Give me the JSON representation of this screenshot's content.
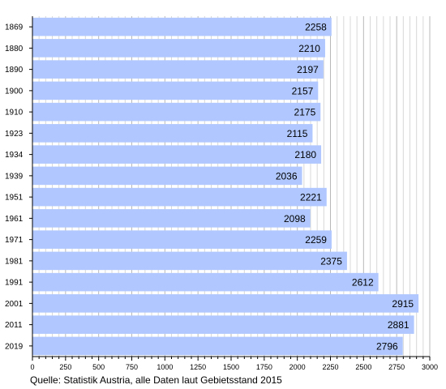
{
  "chart_data": {
    "type": "bar",
    "orientation": "horizontal",
    "categories": [
      "1869",
      "1880",
      "1890",
      "1900",
      "1910",
      "1923",
      "1934",
      "1939",
      "1951",
      "1961",
      "1971",
      "1981",
      "1991",
      "2001",
      "2011",
      "2019"
    ],
    "values": [
      2258,
      2210,
      2197,
      2157,
      2175,
      2115,
      2180,
      2036,
      2221,
      2098,
      2259,
      2375,
      2612,
      2915,
      2881,
      2796
    ],
    "xlim": [
      0,
      3000
    ],
    "xticks": [
      0,
      250,
      500,
      750,
      1000,
      1250,
      1500,
      1750,
      2000,
      2250,
      2500,
      2750,
      3000
    ],
    "bar_color": "#b0c8ff",
    "grid": "vertical minor lines",
    "title": "",
    "xlabel": "",
    "ylabel": ""
  },
  "footer": {
    "source": "Quelle: Statistik Austria, alle Daten laut Gebietsstand 2015"
  }
}
